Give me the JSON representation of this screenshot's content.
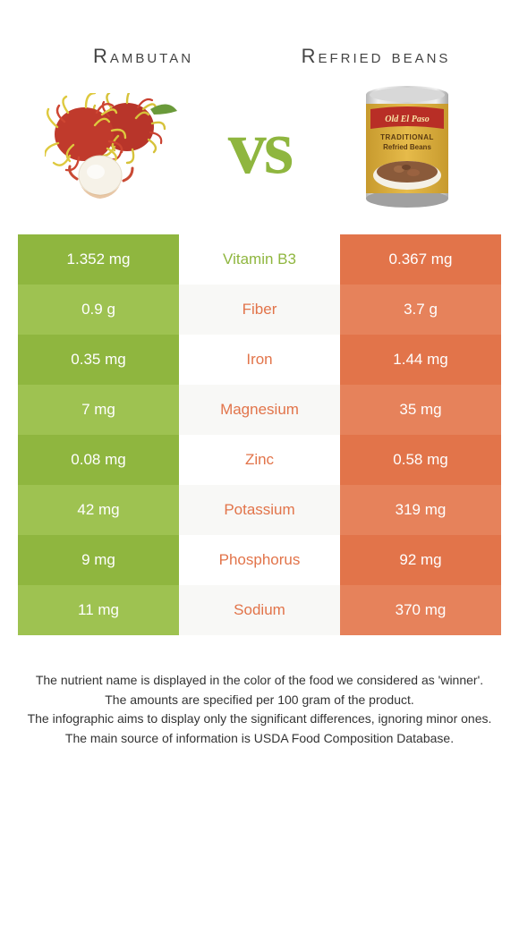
{
  "colors": {
    "left": "#8fb63f",
    "right": "#e2744a",
    "left_alt": "#9ec251",
    "right_alt": "#e6825b",
    "mid_a": "#ffffff",
    "mid_b": "#f8f8f6",
    "vs": "#8fb63f",
    "title": "#444444",
    "footer": "#333333"
  },
  "header": {
    "left_title": "Rambutan",
    "right_title": "Refried beans",
    "vs": "vs"
  },
  "rows": [
    {
      "left": "1.352 mg",
      "mid": "Vitamin B3",
      "right": "0.367 mg",
      "winner": "left"
    },
    {
      "left": "0.9 g",
      "mid": "Fiber",
      "right": "3.7 g",
      "winner": "right"
    },
    {
      "left": "0.35 mg",
      "mid": "Iron",
      "right": "1.44 mg",
      "winner": "right"
    },
    {
      "left": "7 mg",
      "mid": "Magnesium",
      "right": "35 mg",
      "winner": "right"
    },
    {
      "left": "0.08 mg",
      "mid": "Zinc",
      "right": "0.58 mg",
      "winner": "right"
    },
    {
      "left": "42 mg",
      "mid": "Potassium",
      "right": "319 mg",
      "winner": "right"
    },
    {
      "left": "9 mg",
      "mid": "Phosphorus",
      "right": "92 mg",
      "winner": "right"
    },
    {
      "left": "11 mg",
      "mid": "Sodium",
      "right": "370 mg",
      "winner": "right"
    }
  ],
  "footer": {
    "lines": [
      "The nutrient name is displayed in the color of the food we considered as 'winner'.",
      "The amounts are specified per 100 gram of the product.",
      "The infographic aims to display only the significant differences, ignoring minor ones.",
      "The main source of information is USDA Food Composition Database."
    ]
  }
}
